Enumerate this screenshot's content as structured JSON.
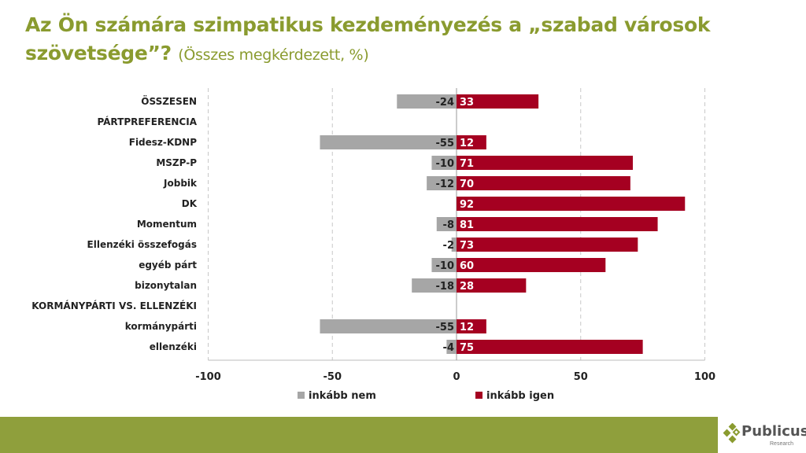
{
  "title": {
    "main": "Az Ön számára szimpatikus kezdeményezés a „szabad városok szövetsége”?",
    "sub": "(Összes megkérdezett, %)"
  },
  "logo": {
    "name": "Publicus",
    "tagline": "Research"
  },
  "colors": {
    "nem": "#a6a6a6",
    "igen": "#a50021",
    "accent": "#8a9b2f"
  },
  "chart_data": {
    "type": "bar",
    "orientation": "horizontal",
    "stacked": "diverging",
    "categories": [
      "ÖSSZESEN",
      "PÁRTPREFERENCIA",
      "Fidesz-KDNP",
      "MSZP-P",
      "Jobbik",
      "DK",
      "Momentum",
      "Ellenzéki összefogás",
      "egyéb párt",
      "bizonytalan",
      "KORMÁNYPÁRTI VS. ELLENZÉKI",
      "kormánypárti",
      "ellenzéki"
    ],
    "series": [
      {
        "name": "inkább nem",
        "values": [
          -24,
          null,
          -55,
          -10,
          -12,
          null,
          -8,
          -2,
          -10,
          -18,
          null,
          -55,
          -4
        ]
      },
      {
        "name": "inkább igen",
        "values": [
          33,
          null,
          12,
          71,
          70,
          92,
          81,
          73,
          60,
          28,
          null,
          12,
          75
        ]
      }
    ],
    "xlim": [
      -100,
      100
    ],
    "xticks": [
      "-100",
      "-50",
      "0",
      "50",
      "100"
    ],
    "grid": true,
    "legend": "bottom"
  }
}
